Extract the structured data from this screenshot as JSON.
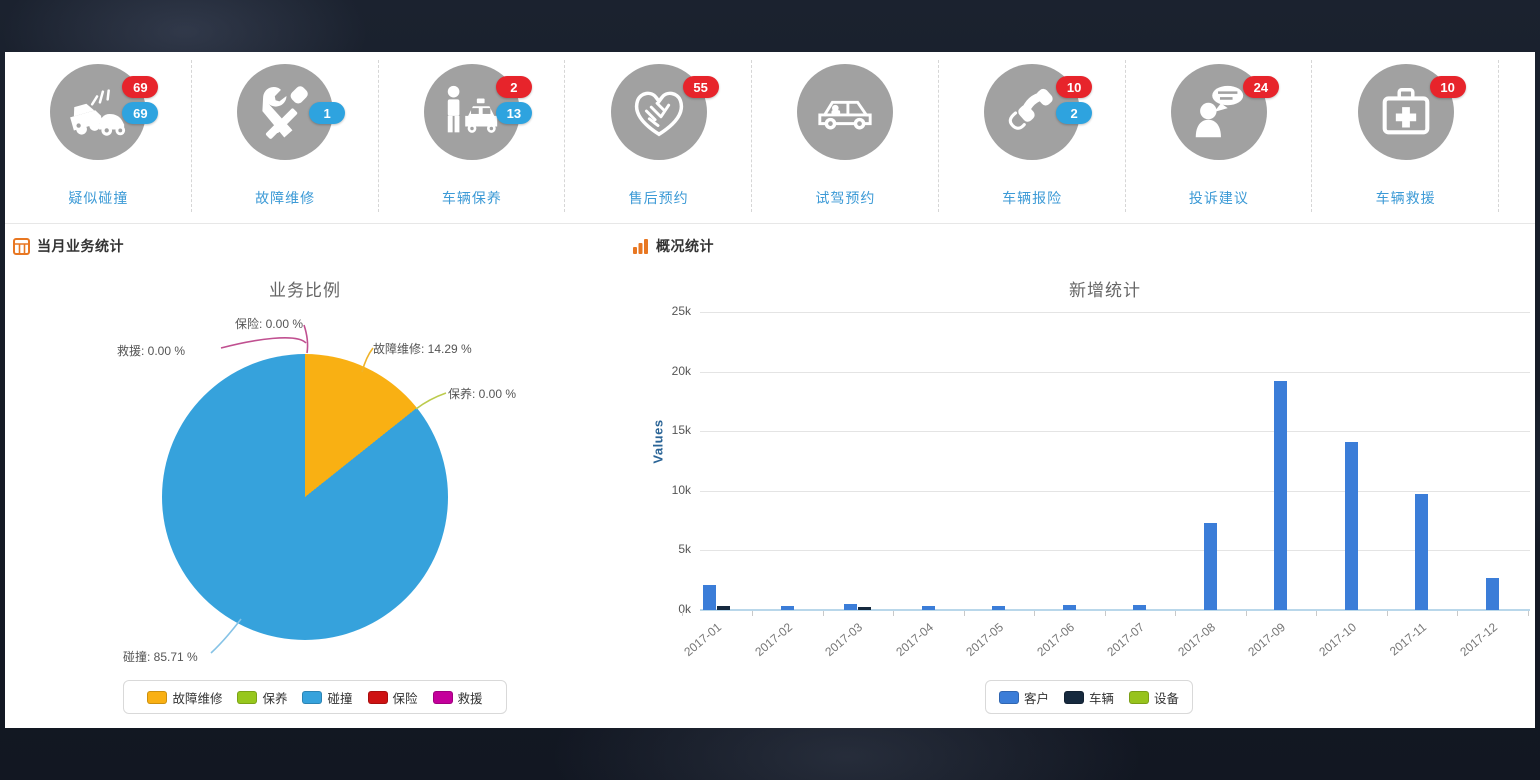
{
  "quick_actions": {
    "items": [
      {
        "label": "疑似碰撞",
        "icon": "car-crash-icon",
        "badges": [
          {
            "value": "69",
            "color": "#e7242b",
            "slot": 0
          },
          {
            "value": "69",
            "color": "#2ea3df",
            "slot": 1
          }
        ]
      },
      {
        "label": "故障维修",
        "icon": "repair-tools-icon",
        "badges": [
          {
            "value": "1",
            "color": "#2ea3df",
            "slot": 1
          }
        ]
      },
      {
        "label": "车辆保养",
        "icon": "person-car-icon",
        "badges": [
          {
            "value": "2",
            "color": "#e7242b",
            "slot": 0
          },
          {
            "value": "13",
            "color": "#2ea3df",
            "slot": 1
          }
        ]
      },
      {
        "label": "售后预约",
        "icon": "handshake-heart-icon",
        "badges": [
          {
            "value": "55",
            "color": "#e7242b",
            "slot": 0
          }
        ]
      },
      {
        "label": "试驾预约",
        "icon": "car-icon",
        "badges": []
      },
      {
        "label": "车辆报险",
        "icon": "phone-receiver-icon",
        "badges": [
          {
            "value": "10",
            "color": "#e7242b",
            "slot": 0
          },
          {
            "value": "2",
            "color": "#2ea3df",
            "slot": 1
          }
        ]
      },
      {
        "label": "投诉建议",
        "icon": "person-speech-icon",
        "badges": [
          {
            "value": "24",
            "color": "#e7242b",
            "slot": 0
          }
        ]
      },
      {
        "label": "车辆救援",
        "icon": "first-aid-kit-icon",
        "badges": [
          {
            "value": "10",
            "color": "#e7242b",
            "slot": 0
          }
        ]
      }
    ]
  },
  "left_panel": {
    "title": "当月业务统计",
    "icon": "calendar-grid-icon"
  },
  "right_panel": {
    "title": "概况统计",
    "icon": "bar-chart-icon"
  },
  "chart_data": [
    {
      "type": "pie",
      "title": "业务比例",
      "labels": [
        "故障维修",
        "保养",
        "碰撞",
        "保险",
        "救援"
      ],
      "values": [
        14.29,
        0.0,
        85.71,
        0.0,
        0.0
      ],
      "colors": [
        "#f9b013",
        "#97c71d",
        "#36a2dc",
        "#ce1213",
        "#c4009b"
      ],
      "callouts": [
        {
          "text": "故障维修: 14.29 %",
          "line_color": "#efb32a"
        },
        {
          "text": "保养: 0.00 %",
          "line_color": "#bccb4d"
        },
        {
          "text": "碰撞: 85.71 %",
          "line_color": "#86c3e6"
        },
        {
          "text": "保险: 0.00 %",
          "line_color": "#c05090"
        },
        {
          "text": "救援: 0.00 %",
          "line_color": "#c05090"
        }
      ],
      "legend": [
        "故障维修",
        "保养",
        "碰撞",
        "保险",
        "救援"
      ],
      "legend_position": "bottom"
    },
    {
      "type": "bar",
      "title": "新增统计",
      "xlabel": "",
      "ylabel": "Values",
      "categories": [
        "2017-01",
        "2017-02",
        "2017-03",
        "2017-04",
        "2017-05",
        "2017-06",
        "2017-07",
        "2017-08",
        "2017-09",
        "2017-10",
        "2017-11",
        "2017-12"
      ],
      "series": [
        {
          "name": "客户",
          "color": "#3b7dd8",
          "values": [
            2100,
            350,
            500,
            300,
            300,
            400,
            450,
            7300,
            19200,
            14100,
            9700,
            2700
          ]
        },
        {
          "name": "车辆",
          "color": "#16293e",
          "values": [
            300,
            0,
            250,
            0,
            0,
            0,
            0,
            0,
            0,
            0,
            0,
            0
          ]
        },
        {
          "name": "设备",
          "color": "#97c31d",
          "values": [
            0,
            0,
            0,
            0,
            0,
            0,
            0,
            0,
            0,
            0,
            0,
            0
          ]
        }
      ],
      "yticks": [
        "0k",
        "5k",
        "10k",
        "15k",
        "20k",
        "25k"
      ],
      "ytick_values": [
        0,
        5000,
        10000,
        15000,
        20000,
        25000
      ],
      "ylim": [
        0,
        25000
      ],
      "grid": true,
      "legend_position": "bottom"
    }
  ]
}
